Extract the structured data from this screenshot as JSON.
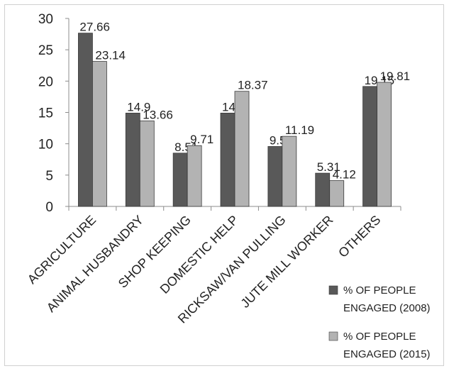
{
  "chart_data": {
    "type": "bar",
    "categories": [
      "AGRICULTURE",
      "ANIMAL HUSBANDRY",
      "SHOP KEEPING",
      "DOMESTIC HELP",
      "RICKSAW/VAN PULLING",
      "JUTE MILL WORKER",
      "OTHERS"
    ],
    "series": [
      {
        "name": "% OF PEOPLE ENGAGED (2008)",
        "values": [
          27.66,
          14.9,
          8.51,
          14.9,
          9.57,
          5.31,
          19.15
        ],
        "color": "#595959",
        "labels": [
          "27.66",
          "14.9",
          "8.51",
          "14.9",
          "9.57",
          "5.31",
          "19.15"
        ]
      },
      {
        "name": "% OF PEOPLE ENGAGED (2015)",
        "values": [
          23.14,
          13.66,
          9.71,
          18.37,
          11.19,
          4.12,
          19.81
        ],
        "color": "#b3b3b3",
        "labels": [
          "23.14",
          "13.66",
          "9.71",
          "18.37",
          "11.19",
          "4.12",
          "19.81"
        ]
      }
    ],
    "ylim": [
      0,
      30
    ],
    "yticks": [
      "0",
      "5",
      "10",
      "15",
      "20",
      "25",
      "30"
    ],
    "grid": false,
    "legend_position": "bottom-right"
  }
}
